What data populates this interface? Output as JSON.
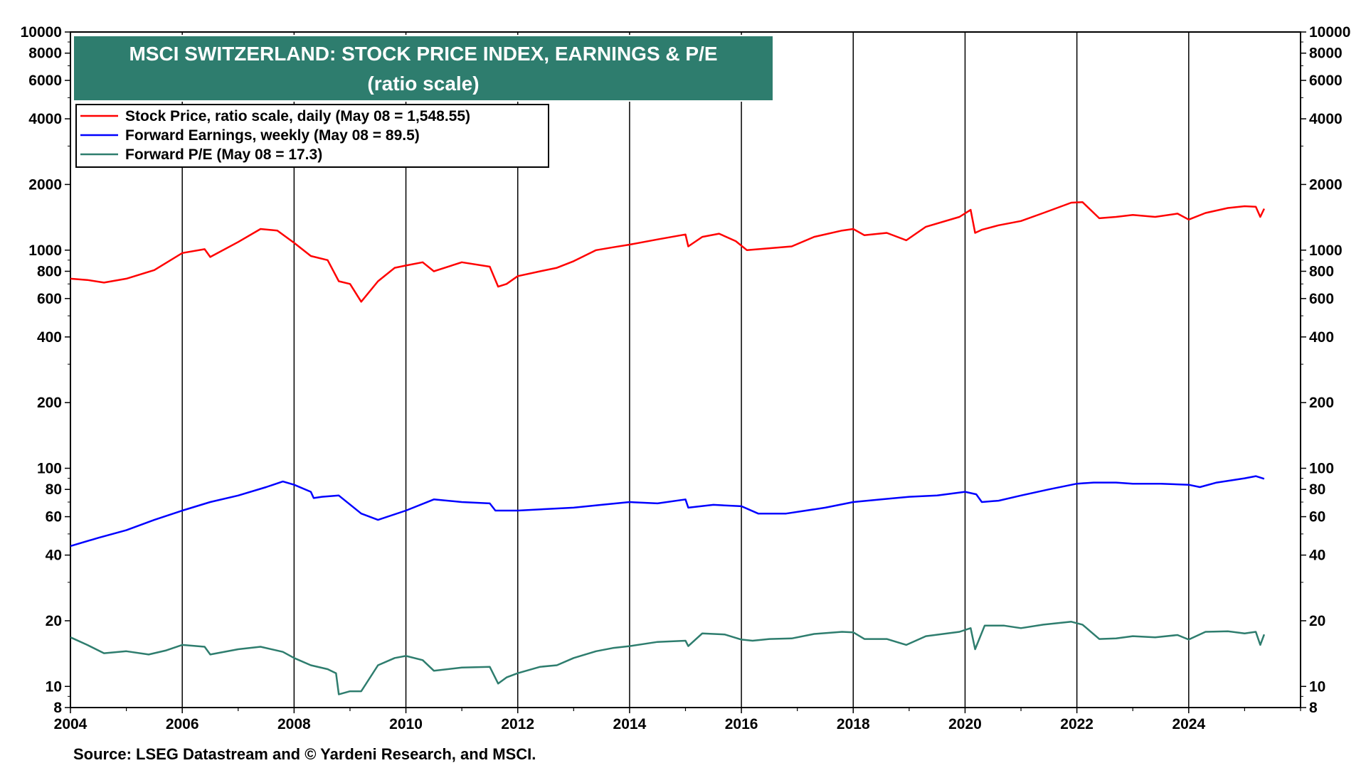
{
  "chart_data": {
    "type": "line",
    "title": "MSCI SWITZERLAND: STOCK PRICE INDEX, EARNINGS & P/E",
    "subtitle": "(ratio scale)",
    "source": "Source: LSEG Datastream and © Yardeni Research, and MSCI.",
    "y_scale": "log",
    "ylim": [
      8,
      10000
    ],
    "xlim": [
      2004.0,
      2026.0
    ],
    "grid": "x-major",
    "legend_position": "top-left",
    "y_ticks": [
      8,
      10,
      20,
      40,
      60,
      80,
      100,
      200,
      400,
      600,
      800,
      1000,
      2000,
      4000,
      6000,
      8000,
      10000
    ],
    "y_tick_labels": [
      "8",
      "10",
      "20",
      "40",
      "60",
      "80",
      "100",
      "200",
      "400",
      "600",
      "800",
      "1000",
      "2000",
      "4000",
      "6000",
      "8000",
      "10000"
    ],
    "x_ticks": [
      2004,
      2006,
      2008,
      2010,
      2012,
      2014,
      2016,
      2018,
      2020,
      2022,
      2024
    ],
    "x_tick_labels": [
      "2004",
      "2006",
      "2008",
      "2010",
      "2012",
      "2014",
      "2016",
      "2018",
      "2020",
      "2022",
      "2024"
    ],
    "series": [
      {
        "name": "Stock Price, ratio scale, daily (May 08 = 1,548.55)",
        "color": "#ff0000",
        "x": [
          2004.0,
          2004.3,
          2004.6,
          2005.0,
          2005.5,
          2006.0,
          2006.4,
          2006.5,
          2007.0,
          2007.4,
          2007.7,
          2008.0,
          2008.3,
          2008.6,
          2008.8,
          2009.0,
          2009.2,
          2009.5,
          2009.8,
          2010.0,
          2010.3,
          2010.5,
          2011.0,
          2011.5,
          2011.65,
          2011.8,
          2012.0,
          2012.4,
          2012.7,
          2013.0,
          2013.4,
          2013.7,
          2014.0,
          2014.5,
          2015.0,
          2015.05,
          2015.3,
          2015.6,
          2015.9,
          2016.1,
          2016.5,
          2016.9,
          2017.3,
          2017.8,
          2018.0,
          2018.2,
          2018.6,
          2018.95,
          2019.3,
          2019.9,
          2020.1,
          2020.18,
          2020.3,
          2020.6,
          2021.0,
          2021.4,
          2021.9,
          2022.1,
          2022.4,
          2022.7,
          2023.0,
          2023.4,
          2023.8,
          2024.0,
          2024.3,
          2024.7,
          2025.0,
          2025.2,
          2025.28,
          2025.35
        ],
        "values": [
          740,
          730,
          710,
          740,
          810,
          970,
          1010,
          930,
          1090,
          1250,
          1230,
          1080,
          940,
          900,
          720,
          700,
          580,
          720,
          830,
          850,
          880,
          800,
          880,
          840,
          680,
          700,
          760,
          800,
          830,
          890,
          1000,
          1030,
          1060,
          1120,
          1180,
          1040,
          1150,
          1190,
          1100,
          1000,
          1020,
          1040,
          1150,
          1230,
          1250,
          1170,
          1200,
          1110,
          1280,
          1420,
          1530,
          1200,
          1240,
          1300,
          1360,
          1480,
          1650,
          1660,
          1400,
          1420,
          1450,
          1420,
          1470,
          1380,
          1480,
          1560,
          1590,
          1580,
          1420,
          1548
        ]
      },
      {
        "name": "Forward Earnings, weekly (May 08 = 89.5)",
        "color": "#0000ff",
        "x": [
          2004.0,
          2004.5,
          2005.0,
          2005.5,
          2006.0,
          2006.5,
          2007.0,
          2007.5,
          2007.8,
          2008.0,
          2008.3,
          2008.35,
          2008.5,
          2008.8,
          2009.2,
          2009.5,
          2010.0,
          2010.5,
          2011.0,
          2011.5,
          2011.6,
          2012.0,
          2012.5,
          2013.0,
          2013.5,
          2014.0,
          2014.5,
          2015.0,
          2015.05,
          2015.5,
          2016.0,
          2016.3,
          2016.8,
          2017.5,
          2018.0,
          2018.5,
          2019.0,
          2019.5,
          2020.0,
          2020.2,
          2020.3,
          2020.6,
          2021.0,
          2021.5,
          2022.0,
          2022.3,
          2022.7,
          2023.0,
          2023.5,
          2024.0,
          2024.2,
          2024.5,
          2025.0,
          2025.2,
          2025.35
        ],
        "values": [
          44,
          48,
          52,
          58,
          64,
          70,
          75,
          82,
          87,
          84,
          78,
          73,
          74,
          75,
          62,
          58,
          64,
          72,
          70,
          69,
          64,
          64,
          65,
          66,
          68,
          70,
          69,
          72,
          66,
          68,
          67,
          62,
          62,
          66,
          70,
          72,
          74,
          75,
          78,
          76,
          70,
          71,
          75,
          80,
          85,
          86,
          86,
          85,
          85,
          84,
          82,
          86,
          90,
          92,
          89.5
        ]
      },
      {
        "name": "Forward P/E (May 08 = 17.3)",
        "color": "#2e7d6e",
        "x": [
          2004.0,
          2004.3,
          2004.6,
          2005.0,
          2005.4,
          2005.7,
          2006.0,
          2006.4,
          2006.5,
          2007.0,
          2007.4,
          2007.8,
          2008.0,
          2008.3,
          2008.6,
          2008.75,
          2008.8,
          2009.0,
          2009.2,
          2009.5,
          2009.8,
          2010.0,
          2010.3,
          2010.5,
          2011.0,
          2011.5,
          2011.65,
          2011.8,
          2012.0,
          2012.4,
          2012.7,
          2013.0,
          2013.4,
          2013.7,
          2014.0,
          2014.5,
          2015.0,
          2015.05,
          2015.3,
          2015.7,
          2016.0,
          2016.2,
          2016.5,
          2016.9,
          2017.3,
          2017.8,
          2018.0,
          2018.2,
          2018.6,
          2018.95,
          2019.3,
          2019.9,
          2020.1,
          2020.18,
          2020.35,
          2020.7,
          2021.0,
          2021.4,
          2021.9,
          2022.1,
          2022.4,
          2022.7,
          2023.0,
          2023.4,
          2023.8,
          2024.0,
          2024.3,
          2024.7,
          2025.0,
          2025.2,
          2025.28,
          2025.35
        ],
        "values": [
          16.8,
          15.5,
          14.2,
          14.5,
          14.0,
          14.6,
          15.5,
          15.2,
          14.0,
          14.8,
          15.2,
          14.4,
          13.5,
          12.5,
          12.0,
          11.5,
          9.2,
          9.5,
          9.5,
          12.5,
          13.5,
          13.8,
          13.2,
          11.8,
          12.2,
          12.3,
          10.3,
          11.0,
          11.5,
          12.3,
          12.5,
          13.5,
          14.5,
          15.0,
          15.3,
          16.0,
          16.2,
          15.3,
          17.5,
          17.3,
          16.4,
          16.2,
          16.5,
          16.6,
          17.4,
          17.8,
          17.7,
          16.5,
          16.5,
          15.5,
          17.0,
          17.8,
          18.5,
          14.8,
          19.0,
          19.0,
          18.5,
          19.2,
          19.8,
          19.2,
          16.5,
          16.6,
          17.0,
          16.8,
          17.2,
          16.4,
          17.8,
          17.9,
          17.5,
          17.8,
          15.5,
          17.3
        ]
      }
    ]
  }
}
